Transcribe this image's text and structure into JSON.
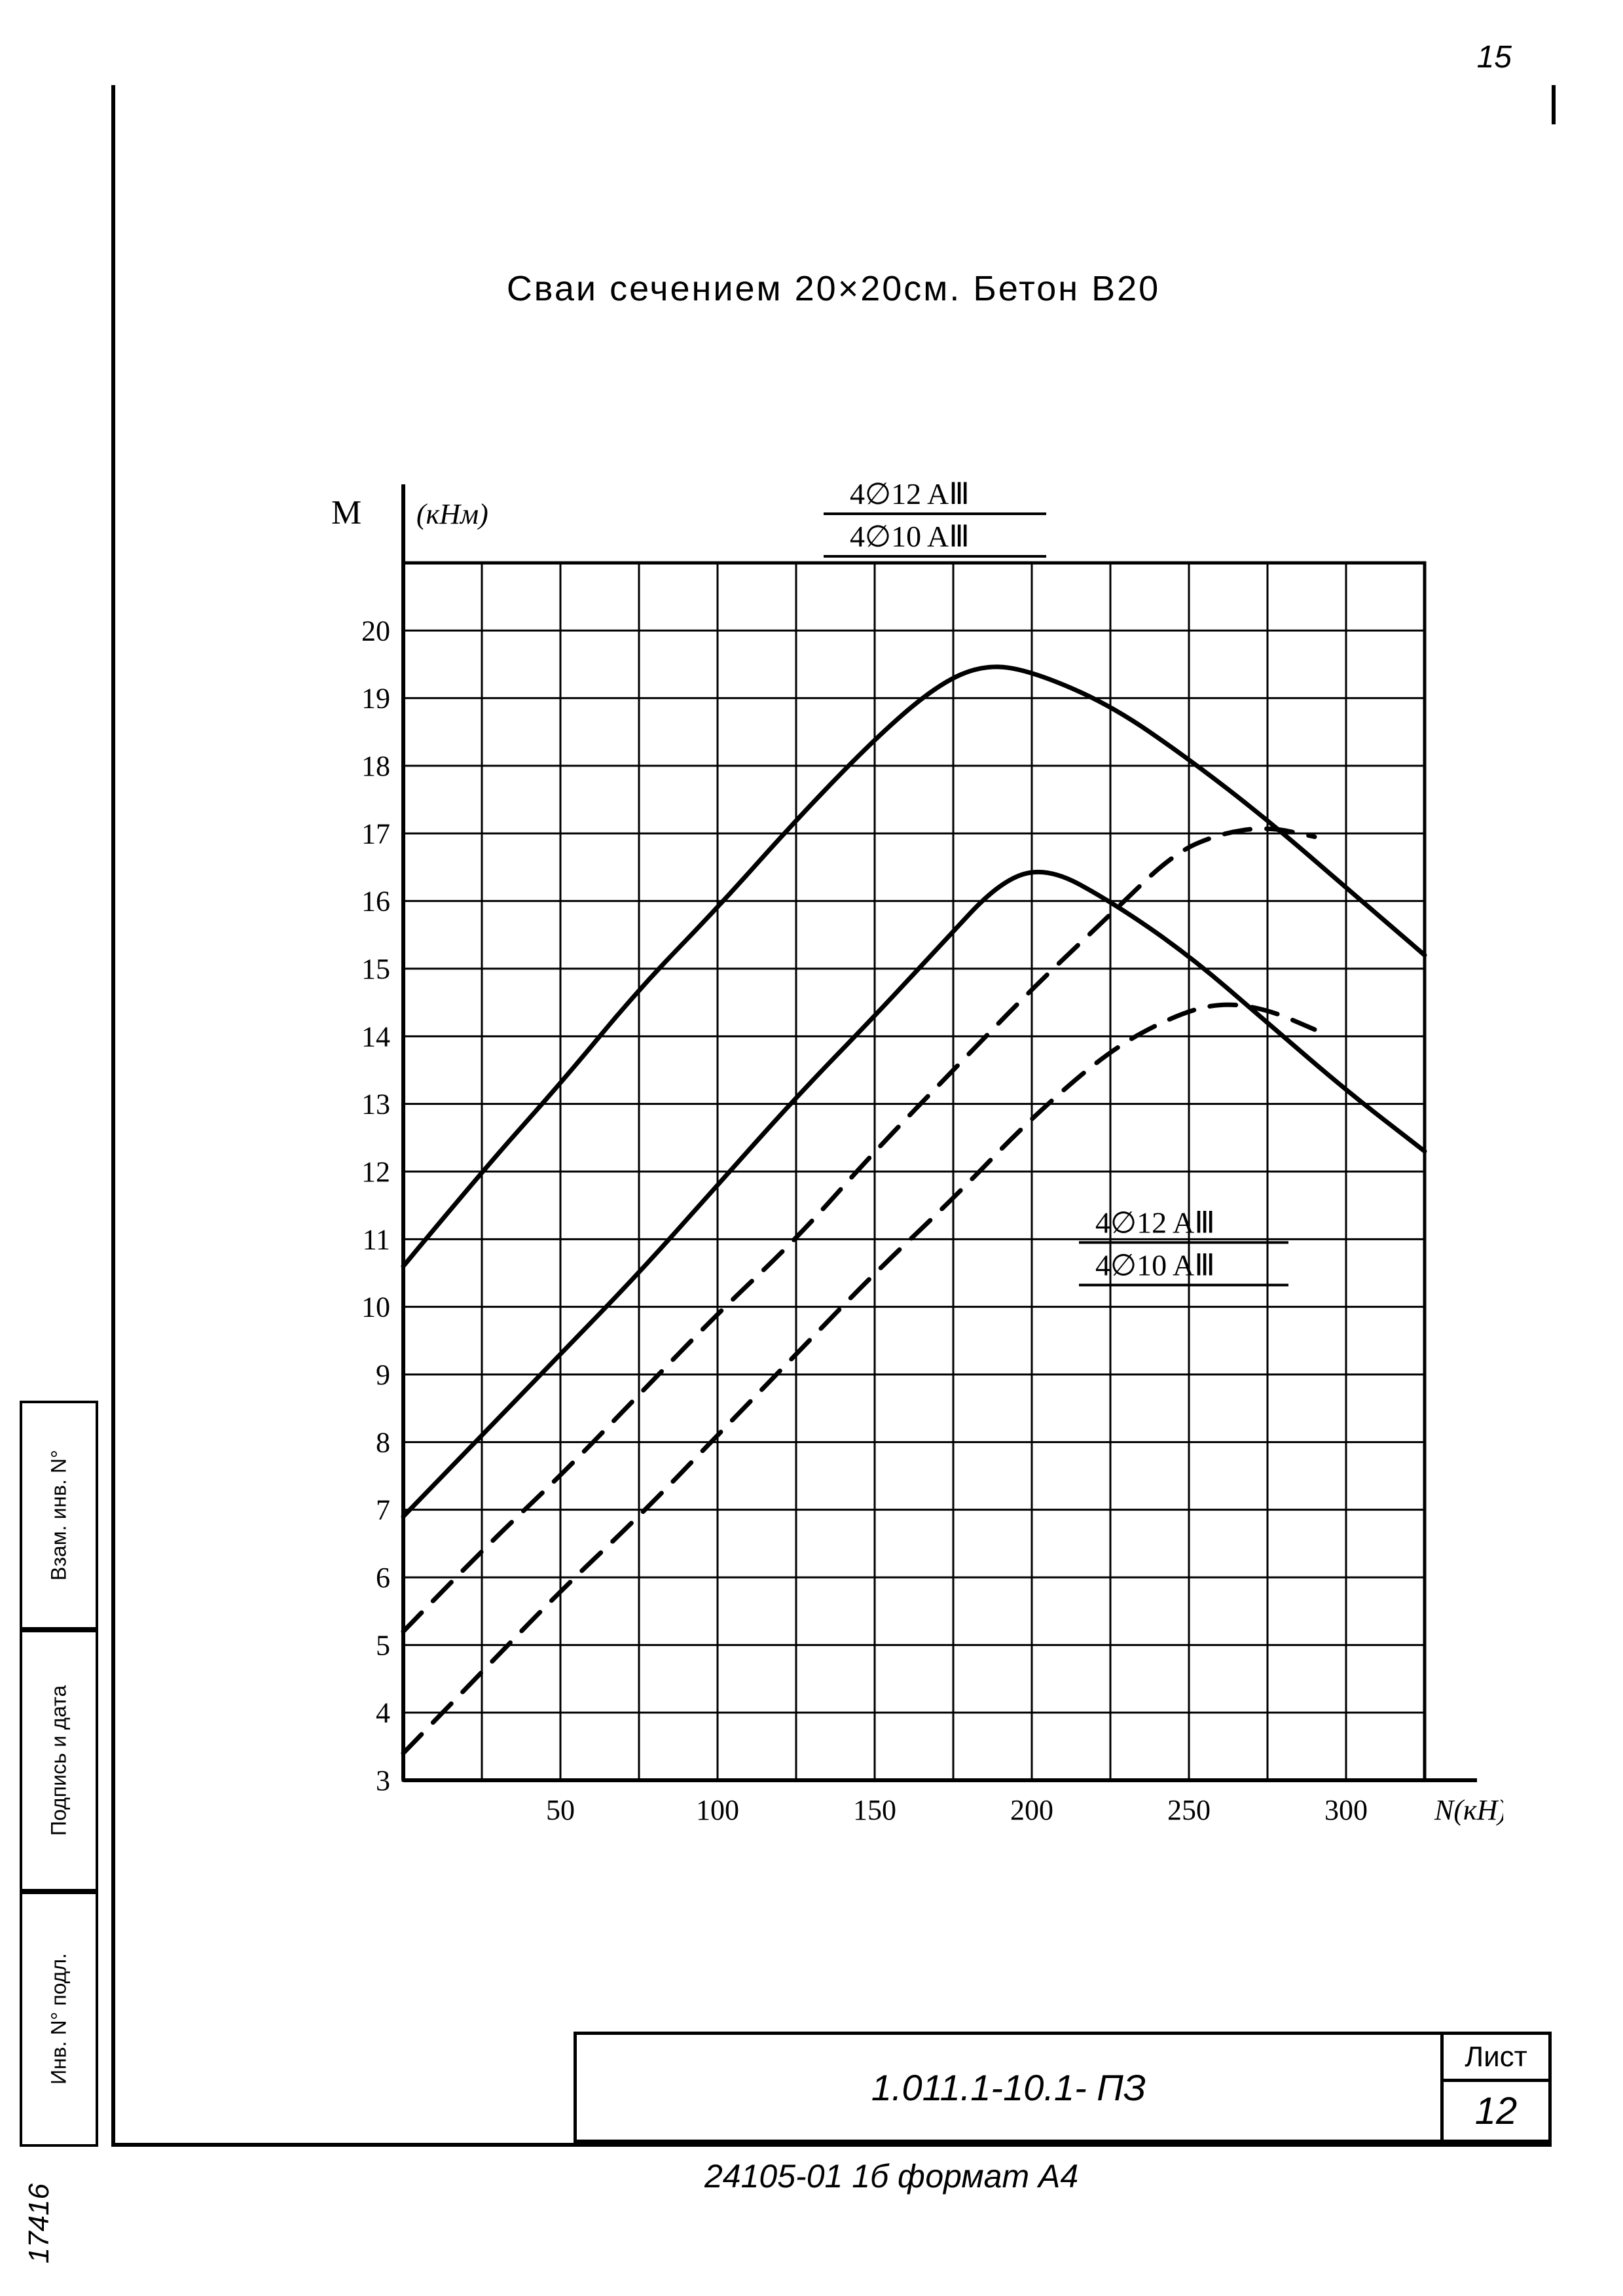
{
  "page_number_top": "15",
  "title": "Сваи сечением 20×20см. Бетон В20",
  "chart": {
    "y_axis_label": "M",
    "y_axis_unit": "(кНм)",
    "x_axis_label": "N(кН)",
    "y_ticks": [
      3,
      4,
      5,
      6,
      7,
      8,
      9,
      10,
      11,
      12,
      13,
      14,
      15,
      16,
      17,
      18,
      19,
      20
    ],
    "x_ticks": [
      50,
      100,
      150,
      200,
      250,
      300
    ],
    "x_range": [
      0,
      325
    ],
    "y_range": [
      3,
      21
    ],
    "grid_color": "#000000",
    "background": "#ffffff",
    "line_color": "#000000",
    "line_width_solid": 7,
    "line_width_dashed": 7,
    "dash_pattern": "40 25",
    "label_top_upper": "4∅12 AⅢ",
    "label_top_lower": "4∅10 AⅢ",
    "label_mid_upper": "4∅12 AⅢ",
    "label_mid_lower": "4∅10 AⅢ",
    "curves": {
      "solid_upper": [
        [
          0,
          10.6
        ],
        [
          25,
          12.0
        ],
        [
          50,
          13.3
        ],
        [
          75,
          14.7
        ],
        [
          100,
          15.9
        ],
        [
          125,
          17.2
        ],
        [
          150,
          18.4
        ],
        [
          170,
          19.2
        ],
        [
          185,
          19.5
        ],
        [
          200,
          19.4
        ],
        [
          225,
          18.9
        ],
        [
          250,
          18.1
        ],
        [
          275,
          17.2
        ],
        [
          300,
          16.2
        ],
        [
          325,
          15.2
        ]
      ],
      "solid_lower": [
        [
          0,
          6.9
        ],
        [
          25,
          8.1
        ],
        [
          50,
          9.3
        ],
        [
          75,
          10.5
        ],
        [
          100,
          11.8
        ],
        [
          125,
          13.1
        ],
        [
          150,
          14.3
        ],
        [
          170,
          15.3
        ],
        [
          190,
          16.3
        ],
        [
          205,
          16.5
        ],
        [
          225,
          16.0
        ],
        [
          250,
          15.2
        ],
        [
          275,
          14.2
        ],
        [
          300,
          13.2
        ],
        [
          325,
          12.3
        ]
      ],
      "dashed_upper": [
        [
          0,
          5.2
        ],
        [
          25,
          6.4
        ],
        [
          50,
          7.5
        ],
        [
          75,
          8.7
        ],
        [
          100,
          9.9
        ],
        [
          125,
          11.0
        ],
        [
          150,
          12.3
        ],
        [
          175,
          13.5
        ],
        [
          200,
          14.7
        ],
        [
          225,
          15.8
        ],
        [
          245,
          16.7
        ],
        [
          260,
          17.0
        ],
        [
          275,
          17.1
        ],
        [
          290,
          16.95
        ]
      ],
      "dashed_lower": [
        [
          0,
          3.4
        ],
        [
          25,
          4.6
        ],
        [
          50,
          5.8
        ],
        [
          75,
          6.9
        ],
        [
          100,
          8.1
        ],
        [
          125,
          9.3
        ],
        [
          150,
          10.5
        ],
        [
          175,
          11.6
        ],
        [
          200,
          12.8
        ],
        [
          225,
          13.8
        ],
        [
          245,
          14.3
        ],
        [
          260,
          14.5
        ],
        [
          275,
          14.4
        ],
        [
          290,
          14.1
        ]
      ]
    },
    "tick_fontsize": 44,
    "axis_label_fontsize": 52
  },
  "side_boxes": {
    "top": "Взам. инв. N°",
    "middle": "Подпись и дата",
    "bottom": "Инв. N° подл."
  },
  "inv_number": "17416",
  "title_block": {
    "doc": "1.011.1-10.1-      ПЗ",
    "sheet_label": "Лист",
    "sheet_num": "12"
  },
  "bottom_line": "24105-01  1б  формат А4"
}
